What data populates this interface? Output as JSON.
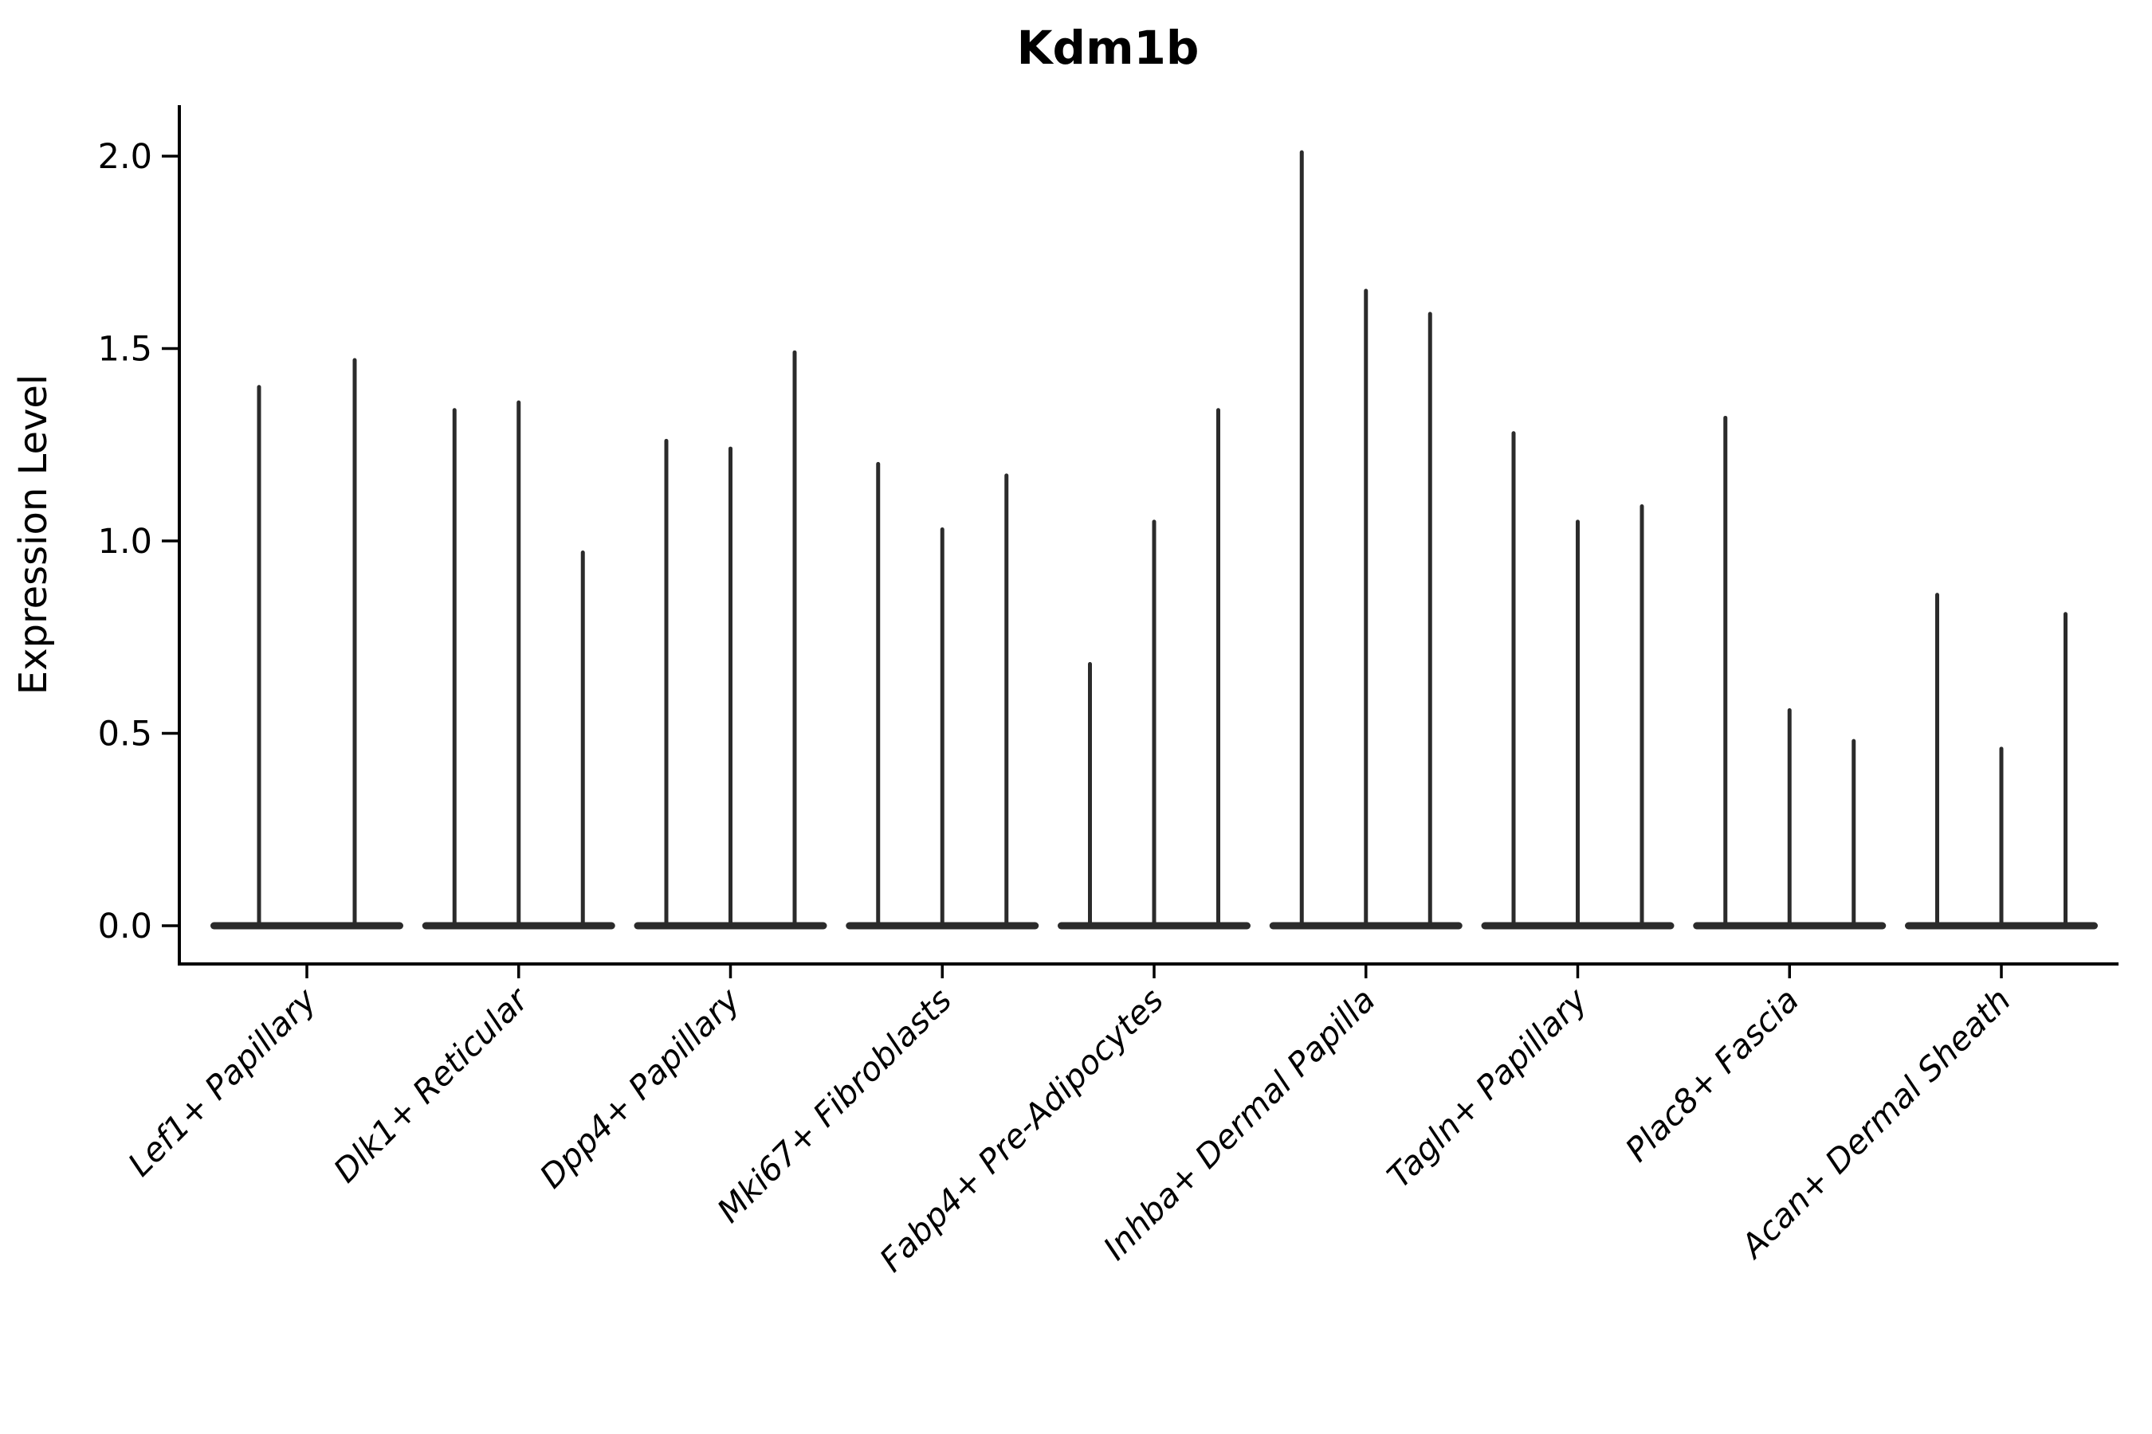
{
  "chart_data": {
    "type": "violin",
    "title": "Kdm1b",
    "ylabel": "Expression Level",
    "xlabel": "",
    "ylim": [
      0.0,
      2.15
    ],
    "yticks": [
      0.0,
      0.5,
      1.0,
      1.5,
      2.0
    ],
    "ytick_labels": [
      "0.0",
      "0.5",
      "1.0",
      "1.5",
      "2.0"
    ],
    "grid": false,
    "legend_position": "none",
    "background_color": "#ffffff",
    "axis_color": "#000000",
    "violin_color": "#2b2b2b",
    "categories": [
      "Lef1+ Papillary",
      "Dlk1+ Reticular",
      "Dpp4+ Papillary",
      "Mki67+ Fibroblasts",
      "Fabp4+ Pre-Adipocytes",
      "Inhba+ Dermal Papilla",
      "Tagln+ Papillary",
      "Plac8+ Fascia",
      "Acan+ Dermal Sheath"
    ],
    "groups": [
      {
        "label": "Lef1+ Papillary",
        "spike_maxima": [
          1.4,
          1.47
        ]
      },
      {
        "label": "Dlk1+ Reticular",
        "spike_maxima": [
          1.34,
          1.36,
          0.97
        ]
      },
      {
        "label": "Dpp4+ Papillary",
        "spike_maxima": [
          1.26,
          1.24,
          1.49
        ]
      },
      {
        "label": "Mki67+ Fibroblasts",
        "spike_maxima": [
          1.2,
          1.03,
          1.17
        ]
      },
      {
        "label": "Fabp4+ Pre-Adipocytes",
        "spike_maxima": [
          0.68,
          1.05,
          1.34
        ]
      },
      {
        "label": "Inhba+ Dermal Papilla",
        "spike_maxima": [
          2.01,
          1.65,
          1.59
        ]
      },
      {
        "label": "Tagln+ Papillary",
        "spike_maxima": [
          1.28,
          1.05,
          1.09
        ]
      },
      {
        "label": "Plac8+ Fascia",
        "spike_maxima": [
          1.32,
          0.56,
          0.48
        ]
      },
      {
        "label": "Acan+ Dermal Sheath",
        "spike_maxima": [
          0.86,
          0.46,
          0.81
        ]
      }
    ]
  }
}
